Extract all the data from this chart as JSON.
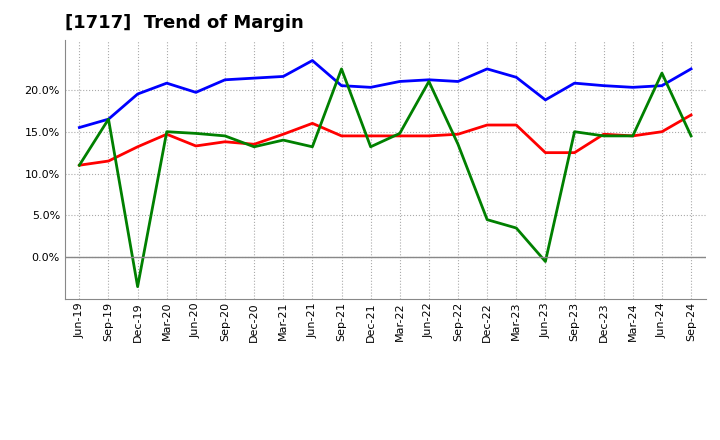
{
  "title": "[1717]  Trend of Margin",
  "x_labels": [
    "Jun-19",
    "Sep-19",
    "Dec-19",
    "Mar-20",
    "Jun-20",
    "Sep-20",
    "Dec-20",
    "Mar-21",
    "Jun-21",
    "Sep-21",
    "Dec-21",
    "Mar-22",
    "Jun-22",
    "Sep-22",
    "Dec-22",
    "Mar-23",
    "Jun-23",
    "Sep-23",
    "Dec-23",
    "Mar-24",
    "Jun-24",
    "Sep-24"
  ],
  "ordinary_income": [
    15.5,
    16.5,
    19.5,
    20.8,
    19.7,
    21.2,
    21.4,
    21.6,
    23.5,
    20.5,
    20.3,
    21.0,
    21.2,
    21.0,
    22.5,
    21.5,
    18.8,
    20.8,
    20.5,
    20.3,
    20.5,
    22.5
  ],
  "net_income": [
    11.0,
    11.5,
    13.2,
    14.7,
    13.3,
    13.8,
    13.5,
    14.7,
    16.0,
    14.5,
    14.5,
    14.5,
    14.5,
    14.7,
    15.8,
    15.8,
    12.5,
    12.5,
    14.7,
    14.5,
    15.0,
    17.0
  ],
  "operating_cashflow": [
    11.0,
    16.5,
    -3.5,
    15.0,
    14.8,
    14.5,
    13.2,
    14.0,
    13.2,
    22.5,
    13.2,
    14.8,
    21.0,
    13.5,
    4.5,
    3.5,
    -0.5,
    15.0,
    14.5,
    14.5,
    22.0,
    14.5
  ],
  "ylim": [
    -5,
    26
  ],
  "yticks": [
    0.0,
    5.0,
    10.0,
    15.0,
    20.0
  ],
  "line_colors": {
    "ordinary_income": "#0000ff",
    "net_income": "#ff0000",
    "operating_cashflow": "#008000"
  },
  "background_color": "#ffffff",
  "plot_bg_color": "#ffffff",
  "grid_color": "#aaaaaa",
  "title_fontsize": 13,
  "legend_fontsize": 9.5,
  "tick_fontsize": 8
}
